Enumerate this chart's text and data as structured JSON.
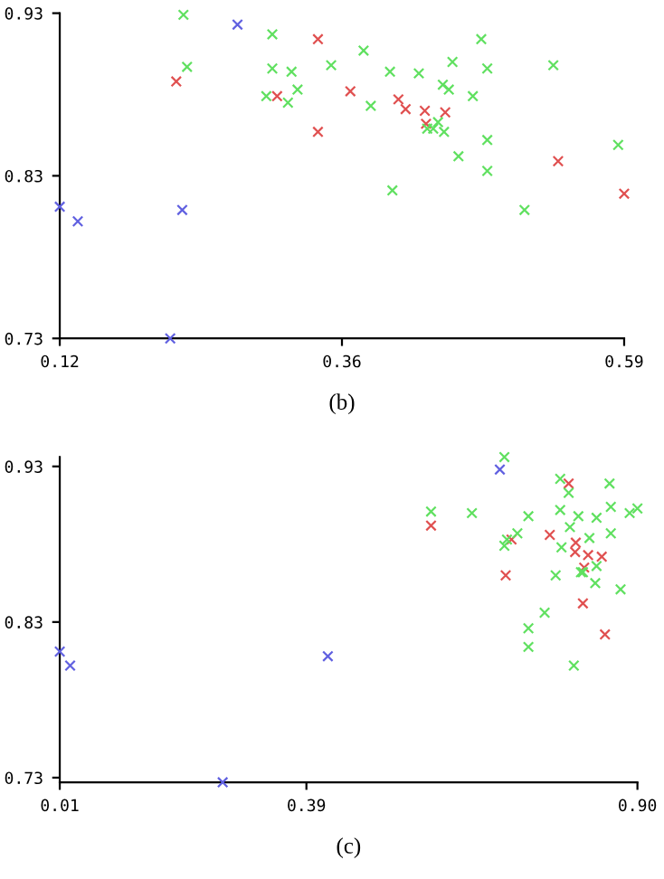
{
  "chart_data": [
    {
      "type": "scatter",
      "marker": "cross",
      "grid": false,
      "legend": false,
      "annotations": [
        "(b)"
      ],
      "xlim": [
        0.12,
        0.59
      ],
      "ylim": [
        0.73,
        0.93
      ],
      "xticks": [
        0.12,
        {
          "value": 0.355,
          "label": "0.36"
        },
        0.59
      ],
      "yticks": [
        0.73,
        0.83,
        0.93
      ],
      "series": [
        {
          "color": "#6060e0",
          "x": [
            0.268,
            0.12,
            0.135,
            0.222,
            0.212
          ],
          "values": [
            0.923,
            0.811,
            0.802,
            0.809,
            0.73
          ]
        },
        {
          "color": "#e05050",
          "x": [
            0.217,
            0.301,
            0.335,
            0.335,
            0.362,
            0.402,
            0.408,
            0.424,
            0.425,
            0.441,
            0.535,
            0.59
          ],
          "values": [
            0.888,
            0.879,
            0.914,
            0.857,
            0.882,
            0.877,
            0.871,
            0.87,
            0.862,
            0.869,
            0.839,
            0.819
          ]
        },
        {
          "color": "#60e060",
          "x": [
            0.223,
            0.226,
            0.297,
            0.297,
            0.292,
            0.31,
            0.313,
            0.318,
            0.346,
            0.373,
            0.379,
            0.395,
            0.397,
            0.419,
            0.426,
            0.431,
            0.435,
            0.439,
            0.44,
            0.444,
            0.447,
            0.452,
            0.464,
            0.471,
            0.476,
            0.476,
            0.476,
            0.507,
            0.531,
            0.585
          ],
          "values": [
            0.929,
            0.897,
            0.917,
            0.896,
            0.879,
            0.875,
            0.894,
            0.883,
            0.898,
            0.907,
            0.873,
            0.894,
            0.821,
            0.893,
            0.859,
            0.859,
            0.863,
            0.886,
            0.857,
            0.883,
            0.9,
            0.842,
            0.879,
            0.914,
            0.896,
            0.852,
            0.833,
            0.809,
            0.898,
            0.849
          ]
        }
      ]
    },
    {
      "type": "scatter",
      "marker": "cross",
      "grid": false,
      "legend": false,
      "annotations": [
        "(c)"
      ],
      "xlim": [
        0.01,
        0.9
      ],
      "ylim": [
        0.727,
        0.936
      ],
      "xticks": [
        0.01,
        0.39,
        {
          "value": 0.9,
          "label": "0.90"
        }
      ],
      "yticks": [
        0.73,
        0.83,
        0.93
      ],
      "series": [
        {
          "color": "#6060e0",
          "x": [
            0.688,
            0.01,
            0.026,
            0.423,
            0.261
          ],
          "values": [
            0.928,
            0.811,
            0.802,
            0.808,
            0.727
          ]
        },
        {
          "color": "#e05050",
          "x": [
            0.582,
            0.794,
            0.706,
            0.765,
            0.805,
            0.804,
            0.824,
            0.845,
            0.818,
            0.697,
            0.816,
            0.85
          ],
          "values": [
            0.892,
            0.919,
            0.883,
            0.886,
            0.881,
            0.875,
            0.873,
            0.872,
            0.865,
            0.86,
            0.842,
            0.822
          ]
        },
        {
          "color": "#60e060",
          "x": [
            0.695,
            0.582,
            0.645,
            0.732,
            0.781,
            0.794,
            0.857,
            0.781,
            0.809,
            0.837,
            0.859,
            0.888,
            0.9,
            0.796,
            0.715,
            0.699,
            0.695,
            0.783,
            0.826,
            0.859,
            0.774,
            0.816,
            0.813,
            0.837,
            0.835,
            0.874,
            0.757,
            0.732,
            0.732,
            0.802
          ],
          "values": [
            0.936,
            0.901,
            0.9,
            0.898,
            0.922,
            0.913,
            0.919,
            0.902,
            0.898,
            0.897,
            0.904,
            0.9,
            0.903,
            0.891,
            0.887,
            0.883,
            0.879,
            0.878,
            0.884,
            0.887,
            0.86,
            0.862,
            0.862,
            0.866,
            0.855,
            0.851,
            0.836,
            0.826,
            0.814,
            0.802
          ]
        }
      ]
    }
  ]
}
